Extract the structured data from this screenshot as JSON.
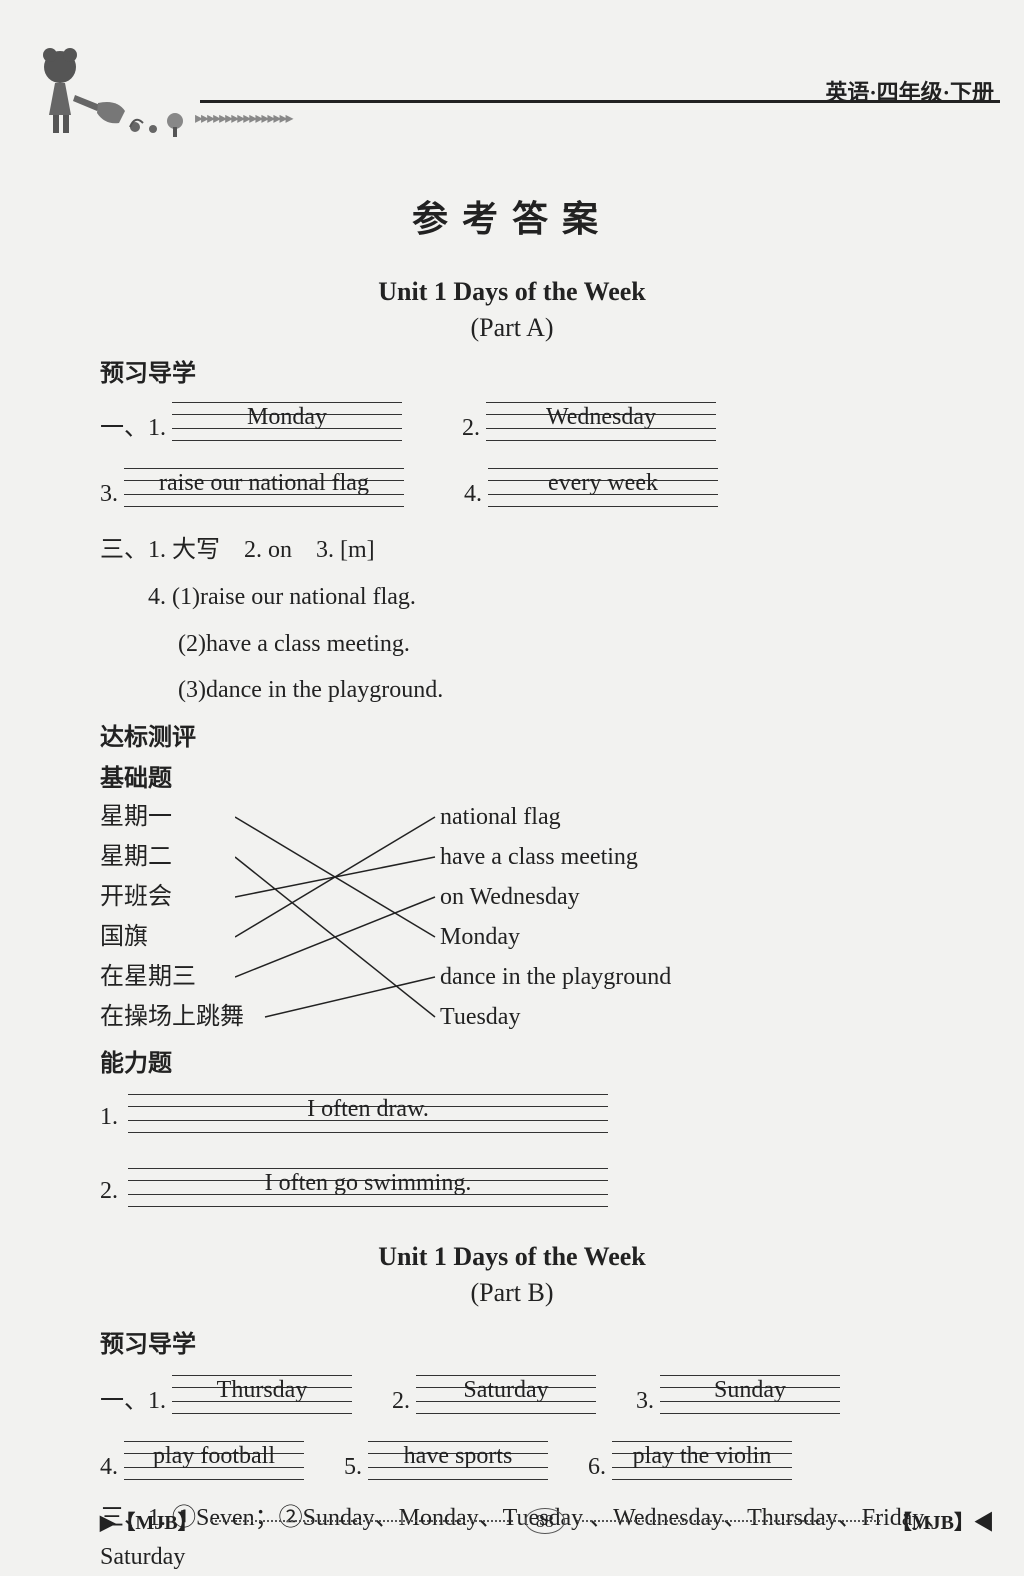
{
  "header": {
    "book_label": "英语·四年级·下册",
    "arrow_glyphs": "▸▸▸▸▸▸▸▸▸▸▸▸▸▸▸▸"
  },
  "main_title": "参考答案",
  "partA": {
    "unit_title": "Unit 1   Days of the Week",
    "part_label": "(Part A)",
    "preview_heading": "预习导学",
    "answers_row1": {
      "n1": "一、1.",
      "a1": "Monday",
      "n2": "2.",
      "a2": "Wednesday"
    },
    "answers_row2": {
      "n3": "3.",
      "a3": "raise our national flag",
      "n4": "4.",
      "a4": "every week"
    },
    "line_three_1": "三、1. 大写　2. on　3. [m]",
    "line_three_4": "　　4. (1)raise our national flag.",
    "line_three_4b": "　　　 (2)have a class meeting.",
    "line_three_4c": "　　　 (3)dance in the playground.",
    "dabiao_heading": "达标测评",
    "jichu_heading": "基础题",
    "match_left": [
      "星期一",
      "星期二",
      "开班会",
      "国旗",
      "在星期三",
      "在操场上跳舞"
    ],
    "match_right": [
      "national flag",
      "have a class meeting",
      "on Wednesday",
      "Monday",
      "dance in the playground",
      "Tuesday"
    ],
    "match_edges": [
      [
        0,
        3
      ],
      [
        1,
        5
      ],
      [
        2,
        1
      ],
      [
        3,
        0
      ],
      [
        4,
        2
      ],
      [
        5,
        4
      ]
    ],
    "nengli_heading": "能力题",
    "ability": {
      "n1": "1.",
      "a1": "I often draw.",
      "n2": "2.",
      "a2": "I often go swimming."
    }
  },
  "partB": {
    "unit_title": "Unit 1   Days of the Week",
    "part_label": "(Part B)",
    "preview_heading": "预习导学",
    "row1": {
      "n1": "一、1.",
      "a1": "Thursday",
      "n2": "2.",
      "a2": "Saturday",
      "n3": "3.",
      "a3": "Sunday"
    },
    "row2": {
      "n4": "4.",
      "a4": "play football",
      "n5": "5.",
      "a5": "have sports",
      "n6": "6.",
      "a6": "play the violin"
    },
    "line_three": "三、1. ①Seven；②Sunday、Monday、Tuesday 、Wednesday、Thursday、Friday、Saturday"
  },
  "footer": {
    "left": "▶【MJB】",
    "page_number": "88",
    "right": "【MJB】◀"
  },
  "colors": {
    "text": "#222222",
    "bg": "#f2f2f0",
    "line": "#333333"
  }
}
